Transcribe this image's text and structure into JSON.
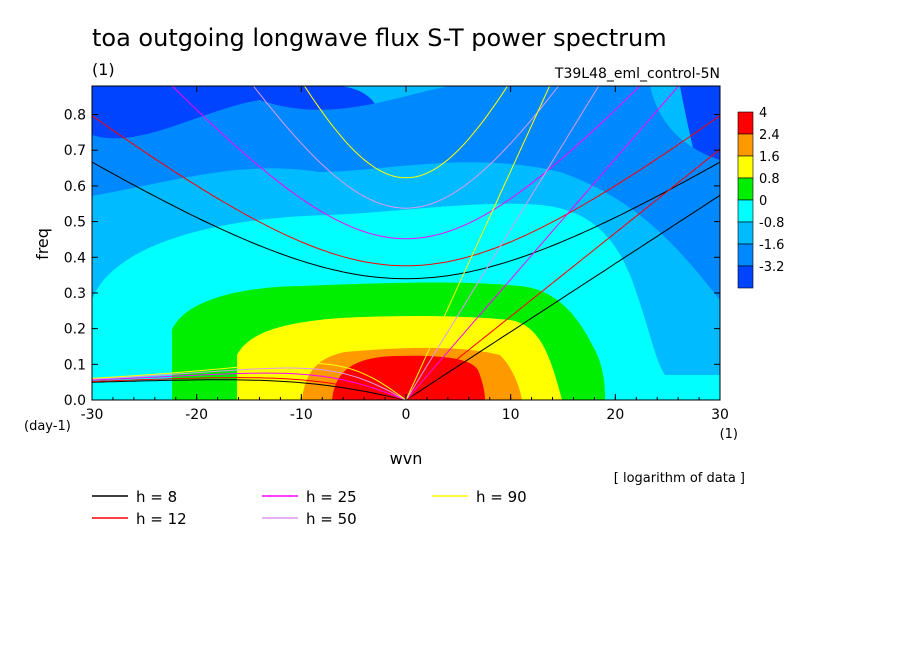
{
  "chart_data": {
    "type": "heatmap",
    "title": "toa outgoing longwave flux S-T power spectrum",
    "subtitle_left": "(1)",
    "subtitle_right": "T39L48_eml_control-5N",
    "xlabel": "wvn",
    "ylabel": "freq",
    "x_unit": "(1)",
    "y_unit": "(day-1)",
    "note": "[ logarithm of data ]",
    "xlim": [
      -30,
      30
    ],
    "ylim": [
      0,
      0.88
    ],
    "x_ticks": [
      {
        "value": -30,
        "label": "-30"
      },
      {
        "value": -20,
        "label": "-20"
      },
      {
        "value": -10,
        "label": "-10"
      },
      {
        "value": 0,
        "label": "0"
      },
      {
        "value": 10,
        "label": "10"
      },
      {
        "value": 20,
        "label": "20"
      },
      {
        "value": 30,
        "label": "30"
      }
    ],
    "y_ticks": [
      {
        "value": 0,
        "label": "0.0"
      },
      {
        "value": 0.1,
        "label": "0.1"
      },
      {
        "value": 0.2,
        "label": "0.2"
      },
      {
        "value": 0.3,
        "label": "0.3"
      },
      {
        "value": 0.4,
        "label": "0.4"
      },
      {
        "value": 0.5,
        "label": "0.5"
      },
      {
        "value": 0.6,
        "label": "0.6"
      },
      {
        "value": 0.7,
        "label": "0.7"
      },
      {
        "value": 0.8,
        "label": "0.8"
      }
    ],
    "colorbar": {
      "labels": [
        "4",
        "2.4",
        "1.6",
        "0.8",
        "0",
        "-0.8",
        "-1.6",
        "-3.2"
      ],
      "colors": [
        "#ff0000",
        "#ff9900",
        "#ffff00",
        "#00ee00",
        "#00ffff",
        "#00bbff",
        "#0088ff",
        "#0044ff"
      ]
    },
    "field_levels": [
      {
        "level": "-3.2",
        "color": "#0044ff"
      },
      {
        "level": "-1.6",
        "color": "#0088ff"
      },
      {
        "level": "-0.8",
        "color": "#00bbff"
      },
      {
        "level": "0",
        "color": "#00ffff"
      },
      {
        "level": "0.8",
        "color": "#00ee00"
      },
      {
        "level": "1.6",
        "color": "#ffff00"
      },
      {
        "level": "2.4",
        "color": "#ff9900"
      },
      {
        "level": "4",
        "color": "#ff0000"
      }
    ],
    "dispersion_curves": [
      {
        "h_label": "h =  8",
        "h": 8,
        "color": "#000000"
      },
      {
        "h_label": "h = 12",
        "h": 12,
        "color": "#ff0000"
      },
      {
        "h_label": "h = 25",
        "h": 25,
        "color": "#ff00ff"
      },
      {
        "h_label": "h = 50",
        "h": 50,
        "color": "#dd99ee"
      },
      {
        "h_label": "h = 90",
        "h": 90,
        "color": "#ffff00"
      }
    ]
  }
}
